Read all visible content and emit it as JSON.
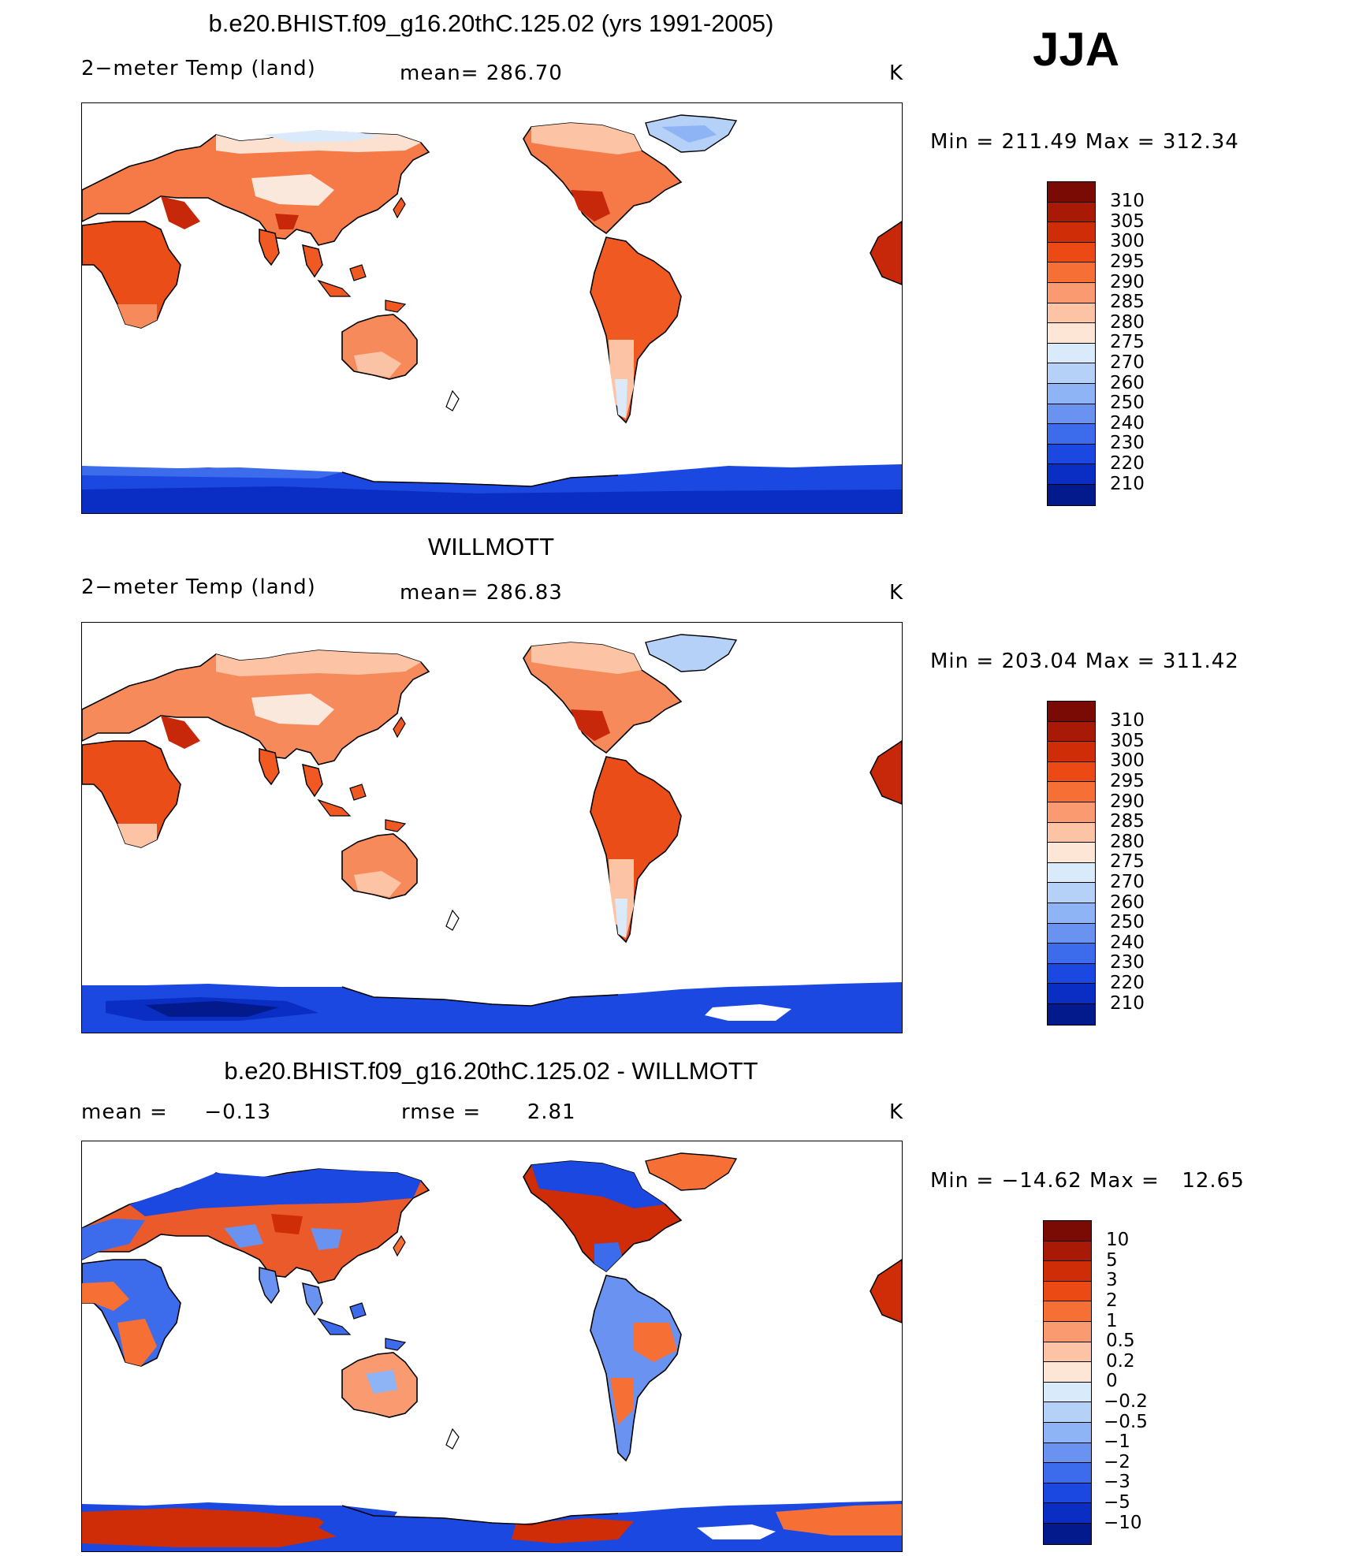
{
  "figure": {
    "season": "JJA",
    "units": "K"
  },
  "panels": [
    {
      "title": "b.e20.BHIST.f09_g16.20thC.125.02 (yrs 1991-2005)",
      "variable": "2−meter Temp (land)",
      "stat1_label": "mean=",
      "stat1_value": "286.70",
      "stat2_label": "",
      "stat2_value": "",
      "units": "K",
      "min_label": "Min",
      "min_value": "211.49",
      "max_label": "Max",
      "max_value": "312.34",
      "eq": "=",
      "colorbar": {
        "labels": [
          "310",
          "305",
          "300",
          "295",
          "290",
          "285",
          "280",
          "275",
          "270",
          "260",
          "250",
          "240",
          "230",
          "220",
          "210"
        ],
        "colors": [
          "#7a0a04",
          "#a81a06",
          "#cf2d07",
          "#eb4a14",
          "#f66f35",
          "#f99a70",
          "#fcc3a4",
          "#fde6d6",
          "#d9eafa",
          "#b5d1f8",
          "#8fb4f6",
          "#6a93f1",
          "#3c6ceb",
          "#1a48e0",
          "#0a2ec3",
          "#031a8c"
        ]
      }
    },
    {
      "title": "WILLMOTT",
      "variable": "2−meter Temp (land)",
      "stat1_label": "mean=",
      "stat1_value": "286.83",
      "stat2_label": "",
      "stat2_value": "",
      "units": "K",
      "min_label": "Min",
      "min_value": "203.04",
      "max_label": "Max",
      "max_value": "311.42",
      "eq": "=",
      "colorbar": {
        "labels": [
          "310",
          "305",
          "300",
          "295",
          "290",
          "285",
          "280",
          "275",
          "270",
          "260",
          "250",
          "240",
          "230",
          "220",
          "210"
        ],
        "colors": [
          "#7a0a04",
          "#a81a06",
          "#cf2d07",
          "#eb4a14",
          "#f66f35",
          "#f99a70",
          "#fcc3a4",
          "#fde6d6",
          "#d9eafa",
          "#b5d1f8",
          "#8fb4f6",
          "#6a93f1",
          "#3c6ceb",
          "#1a48e0",
          "#0a2ec3",
          "#031a8c"
        ]
      }
    },
    {
      "title": "b.e20.BHIST.f09_g16.20thC.125.02 - WILLMOTT",
      "variable": "",
      "stat1_label": "mean =",
      "stat1_value": "−0.13",
      "stat2_label": "rmse =",
      "stat2_value": "2.81",
      "units": "K",
      "min_label": "Min",
      "min_value": "−14.62",
      "max_label": "Max",
      "max_value": "12.65",
      "eq": "=",
      "colorbar": {
        "labels": [
          "10",
          "5",
          "3",
          "2",
          "1",
          "0.5",
          "0.2",
          "0",
          "−0.2",
          "−0.5",
          "−1",
          "−2",
          "−3",
          "−5",
          "−10"
        ],
        "colors": [
          "#7a0a04",
          "#a81a06",
          "#cf2d07",
          "#eb4a14",
          "#f66f35",
          "#f99a70",
          "#fcc3a4",
          "#fde6d6",
          "#d9eafa",
          "#b5d1f8",
          "#8fb4f6",
          "#6a93f1",
          "#3c6ceb",
          "#1a48e0",
          "#0a2ec3",
          "#031a8c"
        ]
      }
    }
  ]
}
